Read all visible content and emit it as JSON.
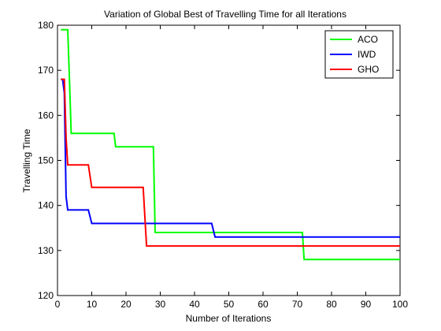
{
  "chart_data": {
    "type": "line",
    "title": "Variation of Global Best of Travelling Time for all Iterations",
    "xlabel": "Number of Iterations",
    "ylabel": "Travelling Time",
    "xlim": [
      0,
      100
    ],
    "ylim": [
      120,
      180
    ],
    "xticks": [
      0,
      10,
      20,
      30,
      40,
      50,
      60,
      70,
      80,
      90,
      100
    ],
    "yticks": [
      120,
      130,
      140,
      150,
      160,
      170,
      180
    ],
    "grid": false,
    "legend_position": "top-right",
    "series": [
      {
        "name": "ACO",
        "color": "#00ff00",
        "x": [
          1,
          3,
          3.5,
          4,
          16.5,
          17,
          28,
          28.5,
          71.5,
          72,
          100
        ],
        "y": [
          179,
          179,
          168,
          156,
          156,
          153,
          153,
          134,
          134,
          128,
          128
        ]
      },
      {
        "name": "IWD",
        "color": "#0000ff",
        "x": [
          1,
          1.5,
          2,
          2.5,
          3,
          9,
          10,
          45,
          46,
          100
        ],
        "y": [
          168,
          168,
          165,
          142,
          139,
          139,
          136,
          136,
          133,
          133
        ]
      },
      {
        "name": "GHO",
        "color": "#ff0000",
        "x": [
          1,
          2,
          2.5,
          3,
          9,
          10,
          25,
          26,
          100
        ],
        "y": [
          168,
          168,
          155,
          149,
          149,
          144,
          144,
          131,
          131
        ]
      }
    ]
  }
}
